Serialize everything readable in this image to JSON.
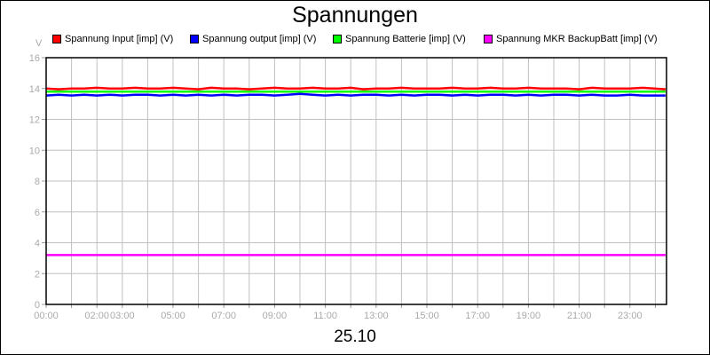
{
  "chart_data": {
    "type": "line",
    "title": "Spannungen",
    "xlabel": "25.10",
    "ylabel": "V",
    "ylim": [
      0,
      16
    ],
    "yticks": [
      "0",
      "2",
      "4",
      "6",
      "8",
      "10",
      "12",
      "14",
      "16"
    ],
    "xticks": [
      "00:00",
      "02:00",
      "03:00",
      "05:00",
      "07:00",
      "09:00",
      "11:00",
      "13:00",
      "15:00",
      "17:00",
      "19:00",
      "21:00",
      "23:00"
    ],
    "xtick_hours": [
      0,
      2,
      3,
      5,
      7,
      9,
      11,
      13,
      15,
      17,
      19,
      21,
      23
    ],
    "grid": true,
    "legend": "top",
    "x_hours": [
      0,
      0.5,
      1,
      1.5,
      2,
      2.5,
      3,
      3.5,
      4,
      4.5,
      5,
      5.5,
      6,
      6.5,
      7,
      7.5,
      8,
      8.5,
      9,
      9.5,
      10,
      10.5,
      11,
      11.5,
      12,
      12.5,
      13,
      13.5,
      14,
      14.5,
      15,
      15.5,
      16,
      16.5,
      17,
      17.5,
      18,
      18.5,
      19,
      19.5,
      20,
      20.5,
      21,
      21.5,
      22,
      22.5,
      23,
      23.5,
      24.4
    ],
    "series": [
      {
        "name": "Spannung Input [imp] (V)",
        "color": "#ff0000",
        "values": [
          14.0,
          13.95,
          14.0,
          14.0,
          14.05,
          14.0,
          14.0,
          14.05,
          14.0,
          14.0,
          14.05,
          14.0,
          13.95,
          14.05,
          14.0,
          14.0,
          13.95,
          14.0,
          14.05,
          14.0,
          14.0,
          14.05,
          14.0,
          14.0,
          14.05,
          13.95,
          14.0,
          14.0,
          14.05,
          14.0,
          14.0,
          14.0,
          14.05,
          14.0,
          14.0,
          14.05,
          14.0,
          14.0,
          14.05,
          14.0,
          14.0,
          14.0,
          13.95,
          14.05,
          14.0,
          14.0,
          14.0,
          14.05,
          13.95
        ]
      },
      {
        "name": "Spannung output [imp] (V)",
        "color": "#0000ff",
        "values": [
          13.55,
          13.6,
          13.55,
          13.6,
          13.55,
          13.6,
          13.55,
          13.6,
          13.6,
          13.55,
          13.6,
          13.55,
          13.6,
          13.55,
          13.6,
          13.55,
          13.6,
          13.6,
          13.55,
          13.6,
          13.65,
          13.6,
          13.55,
          13.6,
          13.55,
          13.6,
          13.6,
          13.55,
          13.6,
          13.55,
          13.6,
          13.6,
          13.55,
          13.6,
          13.55,
          13.6,
          13.6,
          13.55,
          13.6,
          13.55,
          13.6,
          13.6,
          13.55,
          13.6,
          13.55,
          13.55,
          13.6,
          13.55,
          13.55
        ]
      },
      {
        "name": "Spannung Batterie [imp] (V)",
        "color": "#00ff00",
        "values": [
          13.8,
          13.8,
          13.8,
          13.8,
          13.8,
          13.8,
          13.8,
          13.8,
          13.8,
          13.8,
          13.8,
          13.8,
          13.8,
          13.8,
          13.8,
          13.8,
          13.8,
          13.8,
          13.8,
          13.8,
          13.8,
          13.8,
          13.8,
          13.8,
          13.8,
          13.8,
          13.8,
          13.8,
          13.8,
          13.8,
          13.8,
          13.8,
          13.8,
          13.8,
          13.8,
          13.8,
          13.8,
          13.8,
          13.8,
          13.8,
          13.8,
          13.8,
          13.8,
          13.8,
          13.8,
          13.8,
          13.8,
          13.8,
          13.8
        ]
      },
      {
        "name": "Spannung MKR BackupBatt [imp] (V)",
        "color": "#ff00ff",
        "values": [
          3.2,
          3.2,
          3.2,
          3.2,
          3.2,
          3.2,
          3.2,
          3.2,
          3.2,
          3.2,
          3.2,
          3.2,
          3.2,
          3.2,
          3.2,
          3.2,
          3.2,
          3.2,
          3.2,
          3.2,
          3.2,
          3.2,
          3.2,
          3.2,
          3.2,
          3.2,
          3.2,
          3.2,
          3.2,
          3.2,
          3.2,
          3.2,
          3.2,
          3.2,
          3.2,
          3.2,
          3.2,
          3.2,
          3.2,
          3.2,
          3.2,
          3.2,
          3.2,
          3.2,
          3.2,
          3.2,
          3.2,
          3.2,
          3.2
        ]
      }
    ]
  }
}
